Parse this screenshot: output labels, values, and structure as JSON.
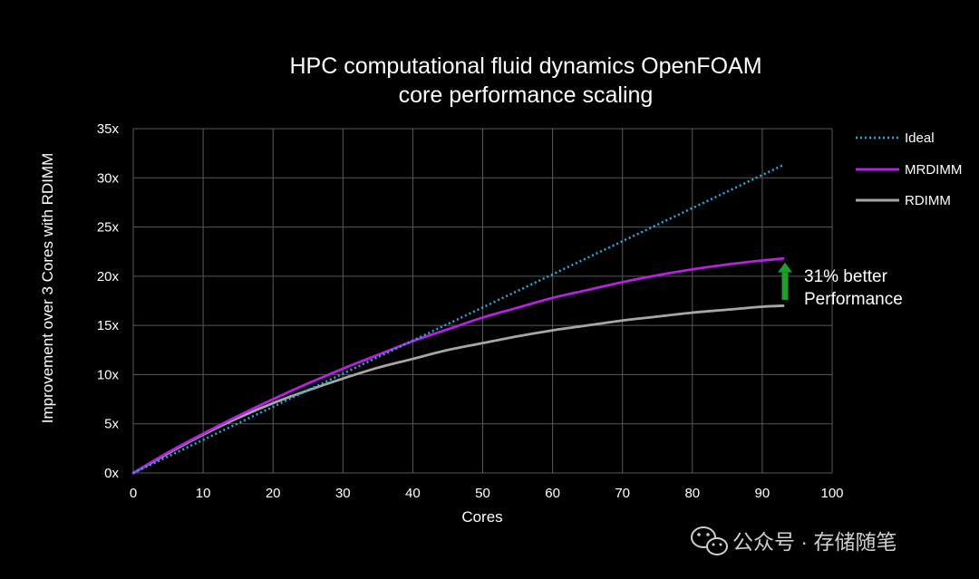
{
  "chart_data": {
    "type": "line",
    "title": [
      "HPC computational fluid dynamics OpenFOAM",
      "core performance scaling"
    ],
    "xlabel": "Cores",
    "ylabel": "Improvement over 3 Cores with RDIMM",
    "xlim": [
      0,
      100
    ],
    "ylim": [
      0,
      35
    ],
    "x_ticks": [
      0,
      10,
      20,
      30,
      40,
      50,
      60,
      70,
      80,
      90,
      100
    ],
    "x_tick_labels": [
      "0",
      "10",
      "20",
      "30",
      "40",
      "50",
      "60",
      "70",
      "80",
      "90",
      "100"
    ],
    "y_ticks": [
      0,
      5,
      10,
      15,
      20,
      25,
      30,
      35
    ],
    "y_tick_labels": [
      "0x",
      "5x",
      "10x",
      "15x",
      "20x",
      "25x",
      "30x",
      "35x"
    ],
    "grid": true,
    "legend_position": "right",
    "series": [
      {
        "name": "Ideal",
        "style": "dotted",
        "color": "#29abe2",
        "x": [
          0,
          93
        ],
        "y": [
          0,
          31.3
        ]
      },
      {
        "name": "MRDIMM",
        "style": "solid",
        "color": "#b620e0",
        "x": [
          0,
          5,
          10,
          15,
          20,
          25,
          30,
          35,
          40,
          45,
          50,
          55,
          60,
          65,
          70,
          75,
          80,
          85,
          90,
          93
        ],
        "y": [
          0,
          2.1,
          4.0,
          5.8,
          7.5,
          9.1,
          10.6,
          12.0,
          13.4,
          14.6,
          15.8,
          16.8,
          17.8,
          18.6,
          19.4,
          20.1,
          20.7,
          21.2,
          21.6,
          21.8
        ]
      },
      {
        "name": "RDIMM",
        "style": "solid",
        "color": "#a6a6a6",
        "x": [
          0,
          5,
          10,
          15,
          20,
          25,
          30,
          35,
          40,
          45,
          50,
          55,
          60,
          65,
          70,
          75,
          80,
          85,
          90,
          93
        ],
        "y": [
          0,
          2.0,
          3.9,
          5.6,
          7.1,
          8.4,
          9.6,
          10.7,
          11.6,
          12.5,
          13.2,
          13.9,
          14.5,
          15.0,
          15.5,
          15.9,
          16.3,
          16.6,
          16.9,
          17.0
        ]
      }
    ],
    "annotations": [
      {
        "text_lines": [
          "31% better",
          "Performance"
        ],
        "arrow": "up",
        "arrow_color": "#1e9e2a",
        "x": 93,
        "y_from": 17.6,
        "y_to": 21.4
      }
    ]
  },
  "watermark": {
    "text": "公众号 · 存储随笔",
    "icon": "wechat-icon"
  }
}
